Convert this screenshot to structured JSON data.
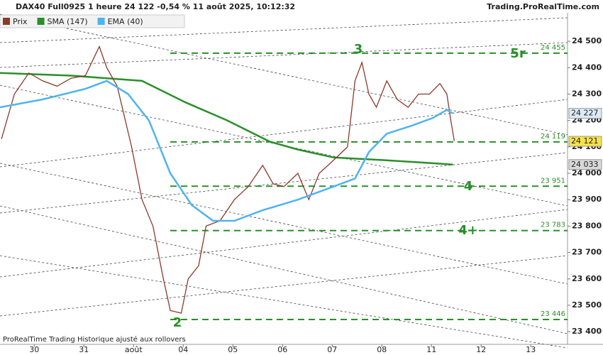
{
  "chart_data": {
    "type": "line",
    "title": "DAX40 Full0925 1 heure 24 122 -0,54 % 11 août 2025, 10:12:32",
    "source": "Trading.ProRealTime.com",
    "footer": "ProRealTime Trading  Historique ajusté aux rollovers",
    "series": [
      {
        "name": "Prix",
        "color": "#8b3a2a",
        "x": [
          -0.66,
          -0.4,
          -0.11,
          0.17,
          0.46,
          0.74,
          1.03,
          1.31,
          1.46,
          1.67,
          1.96,
          2.17,
          2.39,
          2.6,
          2.74,
          2.96,
          3.1,
          3.31,
          3.46,
          3.74,
          4.03,
          4.31,
          4.6,
          4.81,
          5.03,
          5.31,
          5.53,
          5.74,
          6.03,
          6.31,
          6.46,
          6.6,
          6.74,
          6.89,
          7.1,
          7.31,
          7.53,
          7.74,
          7.96,
          8.17,
          8.31,
          8.39,
          8.46
        ],
        "values": [
          24130,
          24300,
          24380,
          24350,
          24330,
          24360,
          24370,
          24480,
          24400,
          24330,
          24100,
          23900,
          23800,
          23600,
          23480,
          23470,
          23600,
          23650,
          23800,
          23820,
          23900,
          23950,
          24030,
          23960,
          23950,
          24000,
          23900,
          24000,
          24050,
          24100,
          24350,
          24420,
          24300,
          24250,
          24350,
          24280,
          24250,
          24300,
          24300,
          24340,
          24300,
          24200,
          24122
        ]
      },
      {
        "name": "SMA (147)",
        "color": "#2a8f2a",
        "x": [
          -0.69,
          0.74,
          2.17,
          3.03,
          3.89,
          4.74,
          5.31,
          6.03,
          7.03,
          7.89,
          8.43
        ],
        "values": [
          24380,
          24370,
          24350,
          24270,
          24200,
          24120,
          24090,
          24060,
          24050,
          24040,
          24033
        ]
      },
      {
        "name": "EMA (40)",
        "color": "#4fb3f0",
        "x": [
          -0.69,
          0.17,
          1.03,
          1.46,
          1.89,
          2.31,
          2.74,
          3.17,
          3.6,
          4.03,
          4.6,
          5.31,
          6.03,
          6.46,
          6.74,
          7.1,
          7.6,
          8.03,
          8.31,
          8.43
        ],
        "values": [
          24250,
          24280,
          24320,
          24350,
          24300,
          24200,
          24000,
          23880,
          23820,
          23820,
          23860,
          23900,
          23950,
          23980,
          24080,
          24150,
          24180,
          24210,
          24240,
          24227
        ]
      }
    ],
    "xlim": [
      -0.69,
      10.74
    ],
    "xticks": [
      {
        "value": 0,
        "label": "30"
      },
      {
        "value": 1,
        "label": "31"
      },
      {
        "value": 2,
        "label": "août"
      },
      {
        "value": 3,
        "label": "04"
      },
      {
        "value": 4,
        "label": "05"
      },
      {
        "value": 5,
        "label": "06"
      },
      {
        "value": 6,
        "label": "07"
      },
      {
        "value": 7,
        "label": "08"
      },
      {
        "value": 8,
        "label": "11"
      },
      {
        "value": 9,
        "label": "12"
      },
      {
        "value": 10,
        "label": "13"
      }
    ],
    "ylim": [
      23352,
      24608
    ],
    "yticks": [
      {
        "value": 23400,
        "label": "23 400"
      },
      {
        "value": 23500,
        "label": "23 500"
      },
      {
        "value": 23600,
        "label": "23 600"
      },
      {
        "value": 23700,
        "label": "23 700"
      },
      {
        "value": 23800,
        "label": "23 800"
      },
      {
        "value": 23900,
        "label": "23 900"
      },
      {
        "value": 24000,
        "label": "24 000"
      },
      {
        "value": 24100,
        "label": "24 100"
      },
      {
        "value": 24200,
        "label": "24 200"
      },
      {
        "value": 24300,
        "label": "24 300"
      },
      {
        "value": 24400,
        "label": "24 400"
      },
      {
        "value": 24500,
        "label": "24 500"
      }
    ],
    "levels": [
      {
        "value": 24455,
        "label": "24 455"
      },
      {
        "value": 24119,
        "label": "24 119"
      },
      {
        "value": 23951,
        "label": "23 951"
      },
      {
        "value": 23783,
        "label": "23 783"
      },
      {
        "value": 23446,
        "label": "23 446"
      }
    ],
    "level_color": "#2a8f2a",
    "price_tags": [
      {
        "value": 24227,
        "label": "24 227",
        "color": "#dcebf7"
      },
      {
        "value": 24121,
        "label": "24 121",
        "color": "#f7e14a"
      },
      {
        "value": 24033,
        "label": "24 033",
        "color": "#d9d9d9"
      }
    ],
    "wave_labels": [
      "3",
      "5r",
      "4",
      "4+",
      "2"
    ]
  }
}
